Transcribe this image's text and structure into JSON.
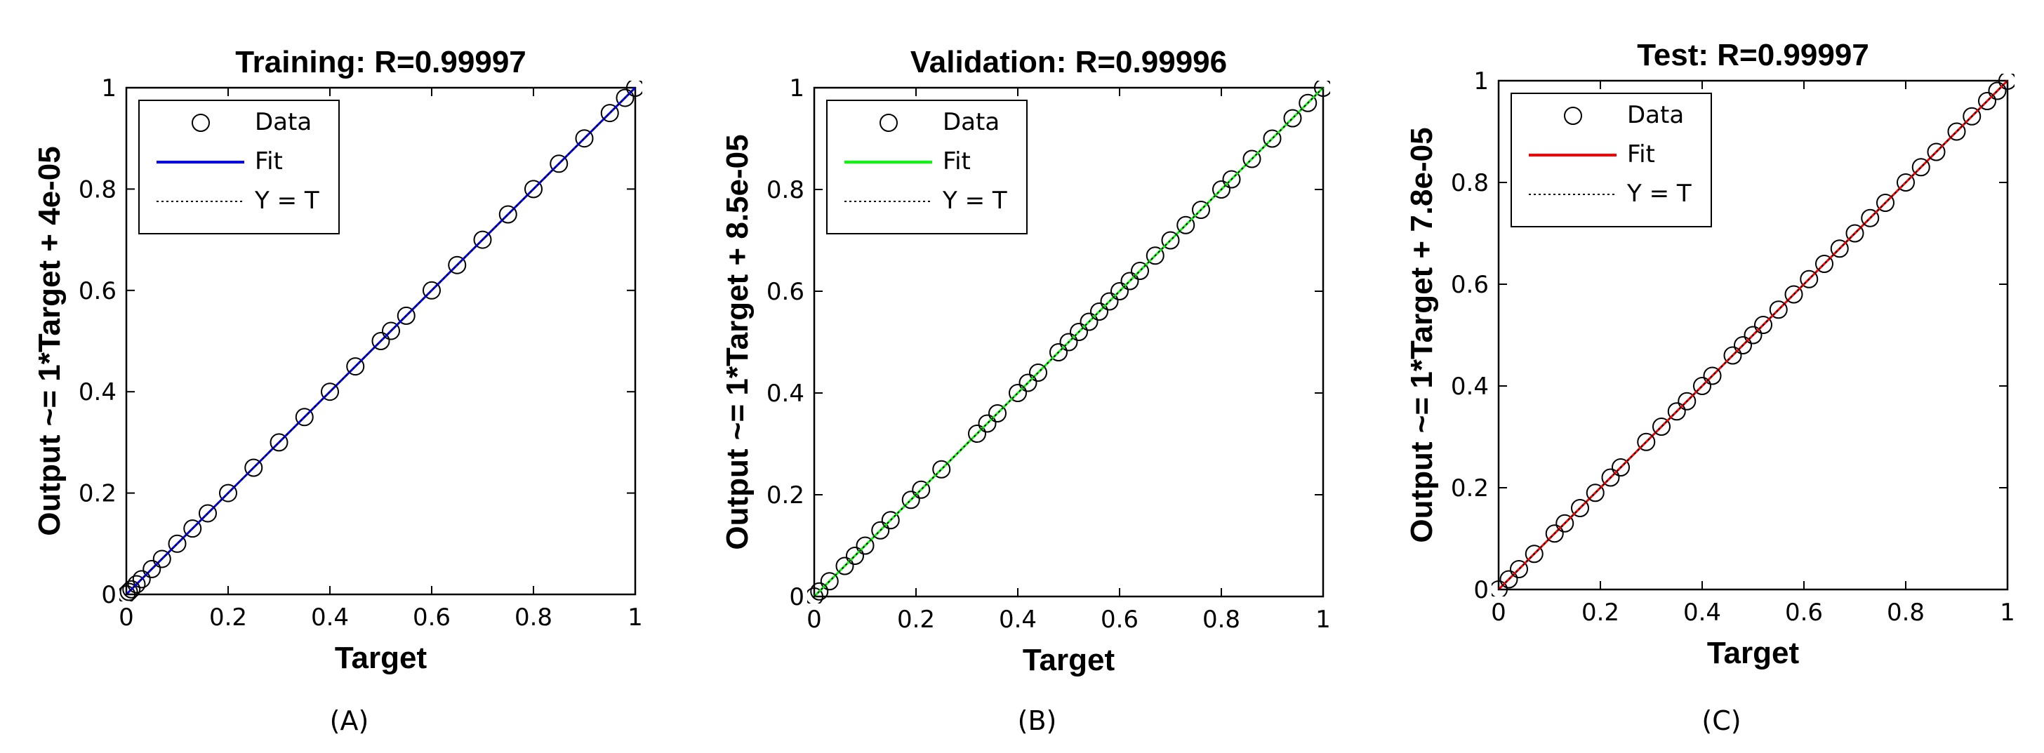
{
  "chart_data": [
    {
      "type": "scatter",
      "title": "Training: R=0.99997",
      "xlabel": "Target",
      "ylabel": "Output ~= 1*Target + 4e-05",
      "panel_label": "(A)",
      "xlim": [
        0,
        1
      ],
      "ylim": [
        0,
        1
      ],
      "xticks": [
        "0",
        "0.2",
        "0.4",
        "0.6",
        "0.8",
        "1"
      ],
      "yticks": [
        "0",
        "0.2",
        "0.4",
        "0.6",
        "0.8",
        "1"
      ],
      "grid": false,
      "legend": {
        "placement": "top-left",
        "entries": [
          "Data",
          "Fit",
          "Y = T"
        ]
      },
      "fit": {
        "slope": 1,
        "intercept": 4e-05,
        "color": "#0000ff"
      },
      "series": [
        {
          "name": "Data",
          "x": [
            0,
            0.005,
            0.01,
            0.02,
            0.03,
            0.05,
            0.07,
            0.1,
            0.13,
            0.16,
            0.2,
            0.25,
            0.3,
            0.35,
            0.4,
            0.45,
            0.5,
            0.52,
            0.55,
            0.6,
            0.65,
            0.7,
            0.75,
            0.8,
            0.85,
            0.9,
            0.95,
            0.98,
            1
          ],
          "y": [
            0,
            0.005,
            0.01,
            0.02,
            0.03,
            0.05,
            0.07,
            0.1,
            0.13,
            0.16,
            0.2,
            0.25,
            0.3,
            0.35,
            0.4,
            0.45,
            0.5,
            0.52,
            0.55,
            0.6,
            0.65,
            0.7,
            0.75,
            0.8,
            0.85,
            0.9,
            0.95,
            0.98,
            1
          ]
        }
      ]
    },
    {
      "type": "scatter",
      "title": "Validation: R=0.99996",
      "xlabel": "Target",
      "ylabel": "Output ~= 1*Target + 8.5e-05",
      "panel_label": "(B)",
      "xlim": [
        0,
        1
      ],
      "ylim": [
        0,
        1
      ],
      "xticks": [
        "0",
        "0.2",
        "0.4",
        "0.6",
        "0.8",
        "1"
      ],
      "yticks": [
        "0",
        "0.2",
        "0.4",
        "0.6",
        "0.8",
        "1"
      ],
      "grid": false,
      "legend": {
        "placement": "top-left",
        "entries": [
          "Data",
          "Fit",
          "Y = T"
        ]
      },
      "fit": {
        "slope": 1,
        "intercept": 8.5e-05,
        "color": "#00ff00"
      },
      "series": [
        {
          "name": "Data",
          "x": [
            0,
            0.01,
            0.03,
            0.06,
            0.08,
            0.1,
            0.13,
            0.15,
            0.19,
            0.21,
            0.25,
            0.32,
            0.34,
            0.36,
            0.4,
            0.42,
            0.44,
            0.48,
            0.5,
            0.52,
            0.54,
            0.56,
            0.58,
            0.6,
            0.62,
            0.64,
            0.67,
            0.7,
            0.73,
            0.76,
            0.8,
            0.82,
            0.86,
            0.9,
            0.94,
            0.97,
            1
          ],
          "y": [
            0,
            0.01,
            0.03,
            0.06,
            0.08,
            0.1,
            0.13,
            0.15,
            0.19,
            0.21,
            0.25,
            0.32,
            0.34,
            0.36,
            0.4,
            0.42,
            0.44,
            0.48,
            0.5,
            0.52,
            0.54,
            0.56,
            0.58,
            0.6,
            0.62,
            0.64,
            0.67,
            0.7,
            0.73,
            0.76,
            0.8,
            0.82,
            0.86,
            0.9,
            0.94,
            0.97,
            1
          ]
        }
      ]
    },
    {
      "type": "scatter",
      "title": "Test: R=0.99997",
      "xlabel": "Target",
      "ylabel": "Output ~= 1*Target + 7.8e-05",
      "panel_label": "(C)",
      "xlim": [
        0,
        1
      ],
      "ylim": [
        0,
        1
      ],
      "xticks": [
        "0",
        "0.2",
        "0.4",
        "0.6",
        "0.8",
        "1"
      ],
      "yticks": [
        "0",
        "0.2",
        "0.4",
        "0.6",
        "0.8",
        "1"
      ],
      "grid": false,
      "legend": {
        "placement": "top-left",
        "entries": [
          "Data",
          "Fit",
          "Y = T"
        ]
      },
      "fit": {
        "slope": 1,
        "intercept": 7.8e-05,
        "color": "#ff0000"
      },
      "series": [
        {
          "name": "Data",
          "x": [
            0,
            0.02,
            0.04,
            0.07,
            0.11,
            0.13,
            0.16,
            0.19,
            0.22,
            0.24,
            0.29,
            0.32,
            0.35,
            0.37,
            0.4,
            0.42,
            0.46,
            0.48,
            0.5,
            0.52,
            0.55,
            0.58,
            0.61,
            0.64,
            0.67,
            0.7,
            0.73,
            0.76,
            0.8,
            0.83,
            0.86,
            0.9,
            0.93,
            0.96,
            0.98,
            1
          ],
          "y": [
            0,
            0.02,
            0.04,
            0.07,
            0.11,
            0.13,
            0.16,
            0.19,
            0.22,
            0.24,
            0.29,
            0.32,
            0.35,
            0.37,
            0.4,
            0.42,
            0.46,
            0.48,
            0.5,
            0.52,
            0.55,
            0.58,
            0.61,
            0.64,
            0.67,
            0.7,
            0.73,
            0.76,
            0.8,
            0.83,
            0.86,
            0.9,
            0.93,
            0.96,
            0.98,
            1
          ]
        }
      ]
    }
  ]
}
